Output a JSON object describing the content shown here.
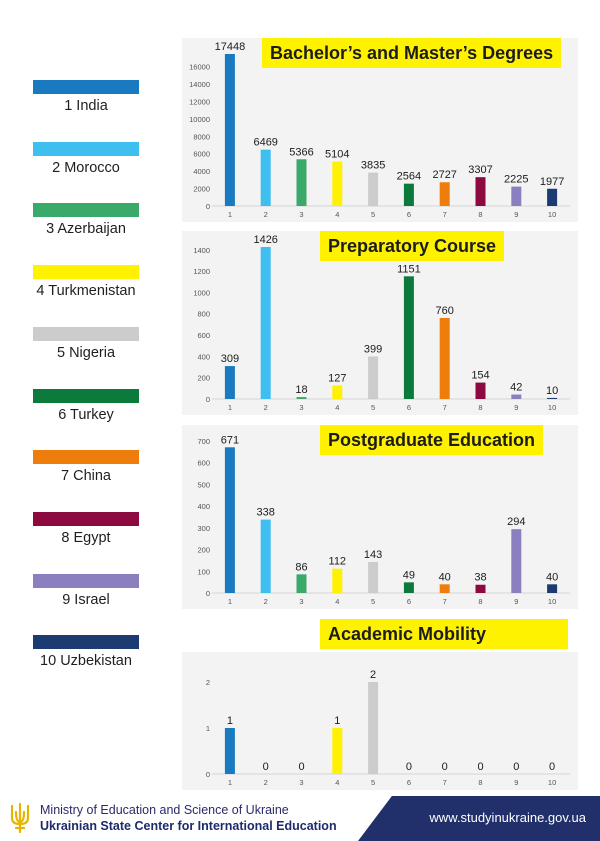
{
  "legend": {
    "items": [
      {
        "label": "1 India",
        "color": "#1a7abf"
      },
      {
        "label": "2 Morocco",
        "color": "#3fbef0"
      },
      {
        "label": "3 Azerbaijan",
        "color": "#3aaa6a"
      },
      {
        "label": "4 Turkmenistan",
        "color": "#fff200"
      },
      {
        "label": "5 Nigeria",
        "color": "#cccccc"
      },
      {
        "label": "6 Turkey",
        "color": "#0b7a3b"
      },
      {
        "label": "7 China",
        "color": "#ef7d0b"
      },
      {
        "label": "8 Egypt",
        "color": "#8c0a3f"
      },
      {
        "label": "9 Israel",
        "color": "#8b7fc0"
      },
      {
        "label": "10 Uzbekistan",
        "color": "#1c3b73"
      }
    ]
  },
  "chart_data": [
    {
      "type": "bar",
      "title": "Bachelor’s and Master’s Degrees",
      "categories": [
        "1",
        "2",
        "3",
        "4",
        "5",
        "6",
        "7",
        "8",
        "9",
        "10"
      ],
      "values": [
        17448,
        6469,
        5366,
        5104,
        3835,
        2564,
        2727,
        3307,
        2225,
        1977
      ],
      "yticks": [
        0,
        2000,
        4000,
        6000,
        8000,
        10000,
        12000,
        14000,
        16000
      ],
      "ylim": [
        0,
        17448
      ],
      "grid": false
    },
    {
      "type": "bar",
      "title": "Preparatory Course",
      "categories": [
        "1",
        "2",
        "3",
        "4",
        "5",
        "6",
        "7",
        "8",
        "9",
        "10"
      ],
      "values": [
        309,
        1426,
        18,
        127,
        399,
        1151,
        760,
        154,
        42,
        10
      ],
      "yticks": [
        0,
        200,
        400,
        600,
        800,
        1000,
        1200,
        1400
      ],
      "ylim": [
        0,
        1426
      ],
      "grid": false
    },
    {
      "type": "bar",
      "title": "Postgraduate Education",
      "categories": [
        "1",
        "2",
        "3",
        "4",
        "5",
        "6",
        "7",
        "8",
        "9",
        "10"
      ],
      "values": [
        671,
        338,
        86,
        112,
        143,
        49,
        40,
        38,
        294,
        40
      ],
      "yticks": [
        0,
        100,
        200,
        300,
        400,
        500,
        600,
        700
      ],
      "ylim": [
        0,
        700
      ],
      "grid": false
    },
    {
      "type": "bar",
      "title": "Academic Mobility",
      "categories": [
        "1",
        "2",
        "3",
        "4",
        "5",
        "6",
        "7",
        "8",
        "9",
        "10"
      ],
      "values": [
        1,
        0,
        0,
        1,
        2,
        0,
        0,
        0,
        0,
        0
      ],
      "yticks": [
        0,
        1,
        2
      ],
      "ylim": [
        0,
        2
      ],
      "grid": false
    }
  ],
  "footer": {
    "ministry": "Ministry of Education and Science of Ukraine",
    "center": "Ukrainian State Center for International Education",
    "url": "www.studyinukraine.gov.ua",
    "logo_icon": "trident-icon"
  }
}
